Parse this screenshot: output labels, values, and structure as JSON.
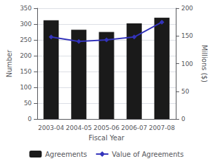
{
  "chart_data": {
    "type": "bar",
    "categories": [
      "2003-04",
      "2004-05",
      "2005-06",
      "2006-07",
      "2007-08"
    ],
    "series": [
      {
        "name": "Agreements",
        "type": "bar",
        "color": "#1a1a1a",
        "values": [
          312,
          282,
          275,
          302,
          320
        ]
      },
      {
        "name": "Value of Agreements",
        "type": "line",
        "axis": "y2",
        "color": "#3333bb",
        "marker": "diamond",
        "values": [
          148,
          140,
          143,
          148,
          175
        ]
      }
    ],
    "xlabel": "Fiscal Year",
    "ylabel": "Number",
    "y2label": "Millions ($)",
    "ylim": [
      0,
      350
    ],
    "yticks": [
      0,
      50,
      100,
      150,
      200,
      250,
      300,
      350
    ],
    "y2lim": [
      0,
      200
    ],
    "y2ticks": [
      0,
      50,
      100,
      150,
      200
    ],
    "grid": true,
    "legend": "bottom"
  }
}
